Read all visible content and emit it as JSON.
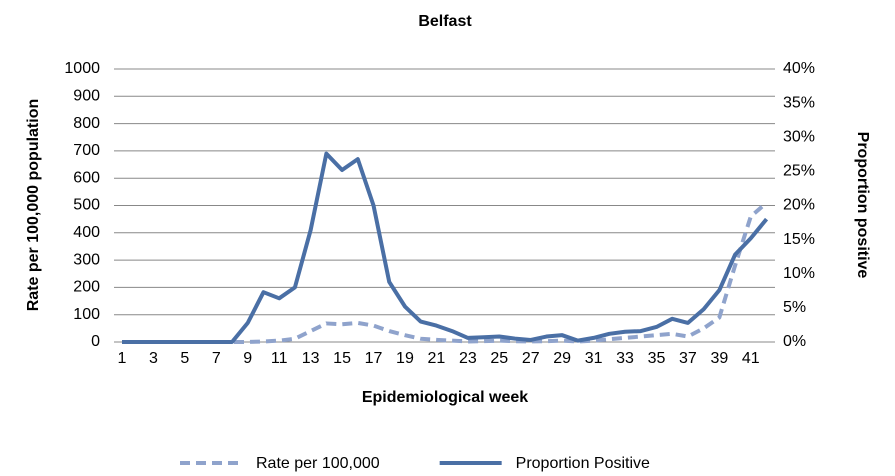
{
  "chart_data": {
    "type": "line",
    "title": "Belfast",
    "x_label": "Epidemiological week",
    "y_label": "Rate per 100,000 population",
    "y2_label": "Proportion positive",
    "categories": [
      "1",
      null,
      "3",
      null,
      "5",
      null,
      "7",
      null,
      "9",
      null,
      "11",
      null,
      "13",
      null,
      "15",
      null,
      "17",
      null,
      "19",
      null,
      "21",
      null,
      "23",
      null,
      "25",
      null,
      "27",
      null,
      "29",
      null,
      "31",
      null,
      "33",
      null,
      "35",
      null,
      "37",
      null,
      "39",
      null,
      "41",
      null
    ],
    "ylim": [
      0,
      1000
    ],
    "yticks": [
      0,
      100,
      200,
      300,
      400,
      500,
      600,
      700,
      800,
      900,
      1000
    ],
    "y2lim": [
      0,
      40
    ],
    "y2ticks": [
      {
        "value": 0,
        "label": "0%"
      },
      {
        "value": 5,
        "label": "5%"
      },
      {
        "value": 10,
        "label": "10%"
      },
      {
        "value": 15,
        "label": "15%"
      },
      {
        "value": 20,
        "label": "20%"
      },
      {
        "value": 25,
        "label": "25%"
      },
      {
        "value": 30,
        "label": "30%"
      },
      {
        "value": 35,
        "label": "35%"
      },
      {
        "value": 40,
        "label": "40%"
      }
    ],
    "grid": true,
    "legend": "bottom",
    "series": [
      {
        "name": "Rate per 100,000",
        "color": "#8fa3cc",
        "dashed": true,
        "values": [
          0,
          0,
          0,
          0,
          0,
          0,
          0,
          0,
          0,
          2,
          5,
          12,
          40,
          68,
          65,
          70,
          60,
          40,
          25,
          12,
          8,
          5,
          2,
          3,
          5,
          3,
          2,
          3,
          5,
          2,
          5,
          10,
          15,
          20,
          25,
          30,
          20,
          50,
          90,
          280,
          460,
          510
        ]
      },
      {
        "name": "Proportion Positive",
        "color": "#4a6fa5",
        "dashed": false,
        "axis": "y2",
        "values": [
          0,
          0,
          0,
          0,
          0,
          0,
          0,
          0,
          2.8,
          7.3,
          6.4,
          8,
          16.4,
          27.6,
          25.2,
          26.8,
          20,
          8.8,
          5.2,
          3,
          2.4,
          1.6,
          0.6,
          0.7,
          0.8,
          0.5,
          0.3,
          0.8,
          1,
          0.2,
          0.6,
          1.2,
          1.5,
          1.6,
          2.2,
          3.4,
          2.8,
          4.8,
          7.6,
          12.8,
          15.2,
          18
        ]
      }
    ]
  }
}
